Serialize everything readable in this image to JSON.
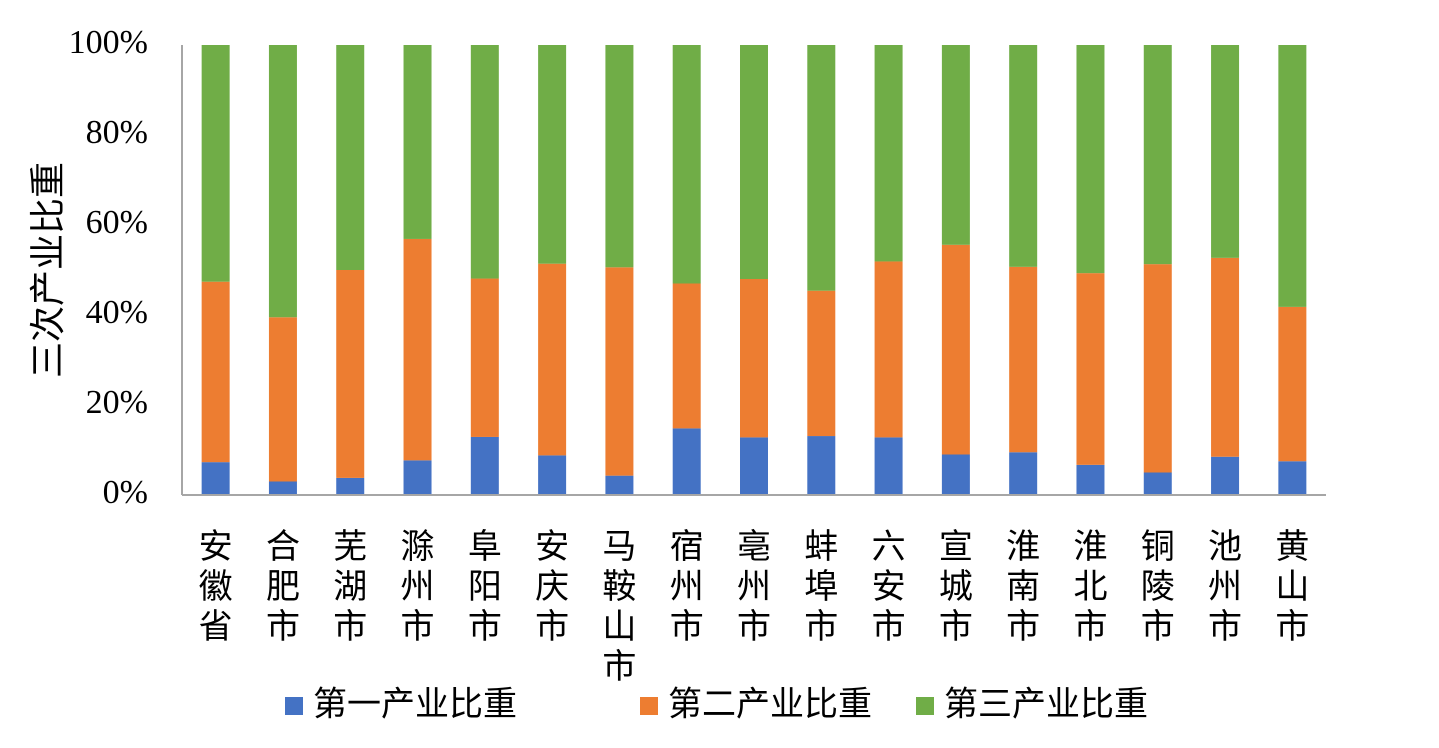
{
  "colors": {
    "primary": "#4472C4",
    "secondary": "#ED7D31",
    "tertiary": "#70AD47",
    "axis": "#A6A6A6"
  },
  "chart_data": {
    "type": "bar",
    "stacked": true,
    "percent": true,
    "ylabel": "三次产业比重",
    "ylim": [
      0,
      100
    ],
    "yticks": [
      "0%",
      "20%",
      "40%",
      "60%",
      "80%",
      "100%"
    ],
    "categories": [
      "安徽省",
      "合肥市",
      "芜湖市",
      "滁州市",
      "阜阳市",
      "安庆市",
      "马鞍山市",
      "宿州市",
      "亳州市",
      "蚌埠市",
      "六安市",
      "宣城市",
      "淮南市",
      "淮北市",
      "铜陵市",
      "池州市",
      "黄山市"
    ],
    "series": [
      {
        "name": "第一产业比重",
        "values": [
          7.3,
          3.0,
          3.8,
          7.7,
          12.9,
          8.8,
          4.3,
          14.8,
          12.8,
          13.1,
          12.8,
          9.0,
          9.5,
          6.7,
          5.0,
          8.5,
          7.5
        ]
      },
      {
        "name": "第二产业比重",
        "values": [
          40.1,
          36.5,
          46.2,
          49.2,
          35.2,
          42.6,
          46.3,
          32.2,
          35.2,
          32.3,
          39.1,
          46.6,
          41.2,
          42.6,
          46.3,
          44.2,
          34.3
        ]
      },
      {
        "name": "第三产业比重",
        "values": [
          52.6,
          60.5,
          50.0,
          43.1,
          51.9,
          48.6,
          49.4,
          53.0,
          52.0,
          54.6,
          48.1,
          44.4,
          49.3,
          50.7,
          48.7,
          47.3,
          58.2
        ]
      }
    ],
    "legend_position": "bottom"
  }
}
